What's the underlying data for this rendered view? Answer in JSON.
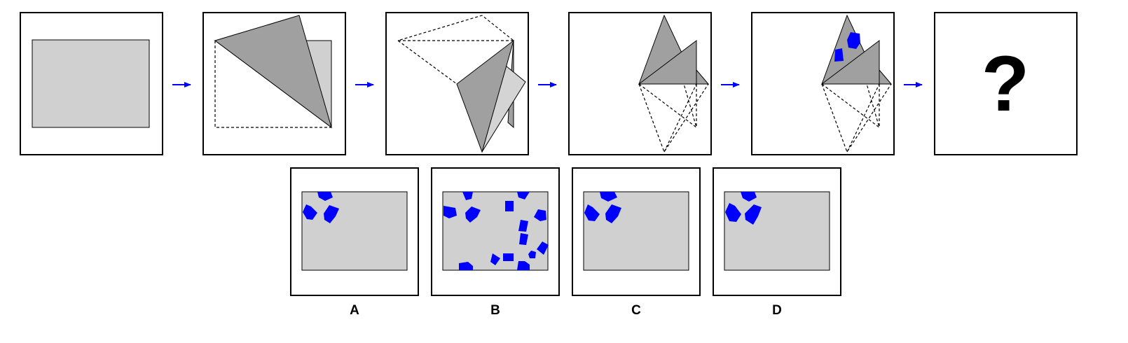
{
  "puzzle": {
    "question_mark": "?",
    "options": [
      {
        "label": "A"
      },
      {
        "label": "B"
      },
      {
        "label": "C"
      },
      {
        "label": "D"
      }
    ]
  },
  "colors": {
    "paper": "#d0d0d0",
    "flap": "#a0a0a0",
    "flap_light": "#d4d4d4",
    "hole": "#0000ff",
    "arrow": "#0000ff",
    "frame": "#000000"
  }
}
